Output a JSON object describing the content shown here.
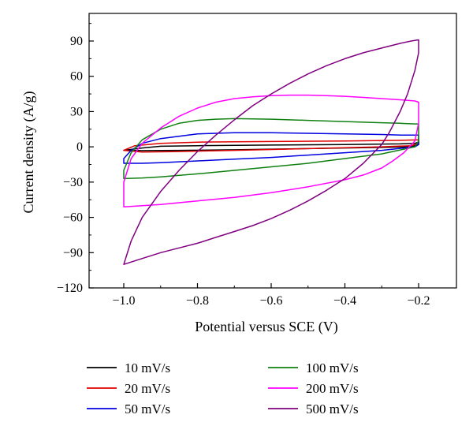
{
  "chart_data": {
    "type": "line",
    "title": "",
    "xlabel": "Potential versus SCE (V)",
    "ylabel": "Current density (A/g)",
    "xlim": [
      -1.1,
      -0.15
    ],
    "ylim": [
      -120,
      110
    ],
    "xticks": [
      -1.0,
      -0.8,
      -0.6,
      -0.4,
      -0.2
    ],
    "xtick_labels": [
      "−1.0",
      "−0.8",
      "−0.6",
      "−0.4",
      "−0.2"
    ],
    "yticks": [
      -120,
      -90,
      -60,
      -30,
      0,
      30,
      60,
      90
    ],
    "ytick_labels": [
      "−120",
      "−90",
      "−60",
      "−30",
      "0",
      "30",
      "60",
      "90"
    ],
    "grid": false,
    "legend_position": "bottom",
    "series": [
      {
        "name": "10 mV/s",
        "color": "#000000",
        "x": [
          -1.0,
          -0.95,
          -0.9,
          -0.8,
          -0.6,
          -0.4,
          -0.25,
          -0.21,
          -0.2,
          -0.2,
          -0.22,
          -0.3,
          -0.5,
          -0.7,
          -0.85,
          -0.95,
          -1.0
        ],
        "y": [
          -3,
          -1,
          0.5,
          1,
          1.5,
          2,
          2.5,
          3,
          4,
          2,
          0,
          -0.5,
          -1.5,
          -2.5,
          -3,
          -3.2,
          -3
        ]
      },
      {
        "name": "20 mV/s",
        "color": "#e00000",
        "x": [
          -1.0,
          -0.97,
          -0.9,
          -0.8,
          -0.6,
          -0.4,
          -0.25,
          -0.2,
          -0.2,
          -0.22,
          -0.3,
          -0.5,
          -0.7,
          -0.85,
          -0.95,
          -1.0
        ],
        "y": [
          -3,
          1,
          3,
          4,
          4.5,
          5,
          5.5,
          6,
          3,
          1,
          0,
          -1.5,
          -3,
          -4,
          -4.5,
          -3
        ]
      },
      {
        "name": "50 mV/s",
        "color": "#0000e0",
        "x": [
          -1.0,
          -0.98,
          -0.95,
          -0.9,
          -0.85,
          -0.8,
          -0.7,
          -0.6,
          -0.5,
          -0.4,
          -0.3,
          -0.25,
          -0.21,
          -0.2,
          -0.2,
          -0.21,
          -0.24,
          -0.3,
          -0.4,
          -0.5,
          -0.6,
          -0.7,
          -0.8,
          -0.9,
          -0.95,
          -1.0
        ],
        "y": [
          -10,
          -3,
          3,
          7,
          9,
          11,
          12,
          12,
          11.5,
          11,
          10.5,
          10,
          10,
          10,
          2,
          0,
          -1,
          -3,
          -5,
          -7,
          -9,
          -10.5,
          -12,
          -13.5,
          -14,
          -14
        ]
      },
      {
        "name": "100 mV/s",
        "color": "#108010",
        "x": [
          -1.0,
          -0.98,
          -0.95,
          -0.9,
          -0.85,
          -0.8,
          -0.75,
          -0.7,
          -0.6,
          -0.5,
          -0.4,
          -0.3,
          -0.25,
          -0.21,
          -0.2,
          -0.2,
          -0.21,
          -0.24,
          -0.3,
          -0.4,
          -0.5,
          -0.6,
          -0.7,
          -0.8,
          -0.9,
          -0.95,
          -1.0
        ],
        "y": [
          -20,
          -5,
          6,
          15,
          20,
          22.5,
          23.5,
          24,
          23.5,
          22.5,
          21.5,
          20.5,
          20,
          19.5,
          19.5,
          5,
          0,
          -2,
          -6,
          -10,
          -14,
          -17,
          -20,
          -23,
          -25.5,
          -26.5,
          -27
        ]
      },
      {
        "name": "200 mV/s",
        "color": "#ff00ff",
        "x": [
          -1.0,
          -0.98,
          -0.95,
          -0.9,
          -0.85,
          -0.8,
          -0.75,
          -0.7,
          -0.65,
          -0.6,
          -0.55,
          -0.5,
          -0.45,
          -0.4,
          -0.35,
          -0.3,
          -0.25,
          -0.21,
          -0.2,
          -0.2,
          -0.21,
          -0.24,
          -0.27,
          -0.3,
          -0.35,
          -0.4,
          -0.5,
          -0.6,
          -0.7,
          -0.8,
          -0.9,
          -0.95,
          -1.0
        ],
        "y": [
          -30,
          -10,
          3,
          16,
          26,
          33,
          38,
          41,
          42.5,
          43.5,
          44,
          44,
          43.5,
          43,
          42,
          41,
          40,
          39,
          38,
          20,
          5,
          -5,
          -12,
          -18,
          -24,
          -28,
          -34,
          -39,
          -43,
          -46,
          -49,
          -50,
          -51
        ]
      },
      {
        "name": "500 mV/s",
        "color": "#800080",
        "x": [
          -1.0,
          -0.98,
          -0.95,
          -0.9,
          -0.85,
          -0.8,
          -0.75,
          -0.7,
          -0.65,
          -0.6,
          -0.55,
          -0.5,
          -0.45,
          -0.4,
          -0.35,
          -0.3,
          -0.25,
          -0.22,
          -0.2,
          -0.2,
          -0.21,
          -0.23,
          -0.25,
          -0.28,
          -0.3,
          -0.35,
          -0.4,
          -0.45,
          -0.5,
          -0.55,
          -0.6,
          -0.65,
          -0.7,
          -0.75,
          -0.8,
          -0.85,
          -0.9,
          -0.95,
          -1.0
        ],
        "y": [
          -100,
          -80,
          -60,
          -38,
          -20,
          -4,
          10,
          23,
          35,
          45,
          54,
          62,
          69,
          75,
          80,
          84,
          88,
          90,
          91,
          80,
          65,
          45,
          30,
          12,
          2,
          -14,
          -27,
          -37,
          -46,
          -54,
          -61,
          -67,
          -72,
          -77,
          -82,
          -86,
          -90,
          -95,
          -100
        ]
      }
    ]
  }
}
